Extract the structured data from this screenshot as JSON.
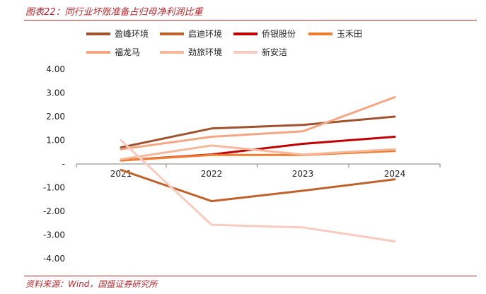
{
  "header": {
    "title": "图表22：同行业坏账准备占归母净利润比重"
  },
  "footer": {
    "source": "资料来源：Wind，国盛证券研究所"
  },
  "chart_data": {
    "type": "line",
    "title": "图表22：同行业坏账准备占归母净利润比重",
    "xlabel": "",
    "ylabel": "",
    "x": [
      "2021",
      "2022",
      "2023",
      "2024"
    ],
    "ylim": [
      -4,
      4
    ],
    "yticks": [
      "4.00",
      "3.00",
      "2.00",
      "1.00",
      "-",
      "-1.00",
      "-2.00",
      "-3.00",
      "-4.00"
    ],
    "grid": false,
    "legend_position": "top",
    "series": [
      {
        "name": "盈峰环境",
        "color": "#a0522d",
        "values": [
          0.7,
          1.5,
          1.65,
          2.0
        ]
      },
      {
        "name": "启迪环境",
        "color": "#c0612b",
        "values": [
          -0.25,
          -1.57,
          -1.13,
          -0.65
        ]
      },
      {
        "name": "侨银股份",
        "color": "#c00000",
        "values": [
          0.15,
          0.4,
          0.85,
          1.15
        ]
      },
      {
        "name": "玉禾田",
        "color": "#ed7d31",
        "values": [
          0.15,
          0.38,
          0.38,
          0.55
        ]
      },
      {
        "name": "福龙马",
        "color": "#f4a582",
        "values": [
          0.62,
          1.15,
          1.38,
          2.82
        ]
      },
      {
        "name": "劲旅环境",
        "color": "#f6b89a",
        "values": [
          0.2,
          0.78,
          0.4,
          0.62
        ]
      },
      {
        "name": "新安洁",
        "color": "#f8cbc0",
        "values": [
          1.0,
          -2.57,
          -2.68,
          -3.27
        ]
      }
    ]
  }
}
